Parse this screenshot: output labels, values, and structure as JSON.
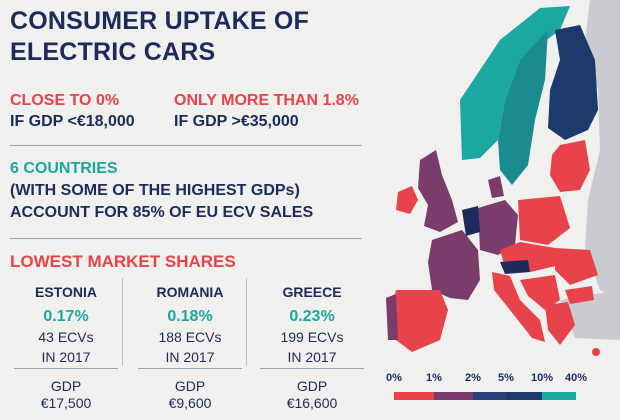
{
  "title": "CONSUMER UPTAKE OF ELECTRIC CARS",
  "low": {
    "headline": "CLOSE TO 0%",
    "sub": "IF GDP <€18,000"
  },
  "high": {
    "headline": "ONLY MORE THAN 1.8%",
    "sub": "IF GDP >€35,000"
  },
  "concentration": {
    "headline": "6 COUNTRIES",
    "line2": "(WITH SOME OF THE HIGHEST GDPs)",
    "line3": "ACCOUNT FOR 85% OF EU ECV SALES"
  },
  "lowest": {
    "heading": "LOWEST MARKET SHARES",
    "countries": [
      {
        "name": "ESTONIA",
        "share": "0.17%",
        "ecvs": "43 ECVs",
        "year": "IN 2017",
        "gdp_label": "GDP",
        "gdp": "€17,500"
      },
      {
        "name": "ROMANIA",
        "share": "0.18%",
        "ecvs": "188 ECVs",
        "year": "IN 2017",
        "gdp_label": "GDP",
        "gdp": "€9,600"
      },
      {
        "name": "GREECE",
        "share": "0.23%",
        "ecvs": "199 ECVs",
        "year": "IN 2017",
        "gdp_label": "GDP",
        "gdp": "€16,600"
      }
    ]
  },
  "legend": {
    "labels": [
      "0%",
      "1%",
      "2%",
      "5%",
      "10%",
      "40%"
    ],
    "colors": [
      "#e8424a",
      "#7a3d6b",
      "#2b3f7d",
      "#1c3a6b",
      "#1a8c8f",
      "#1aa8a0"
    ]
  },
  "palette": {
    "red": "#e8424a",
    "purple": "#7a3d6b",
    "navy": "#1d2a5c",
    "blue": "#1c3a6b",
    "teal_dark": "#1a8c8f",
    "teal": "#1aa8a0",
    "grey": "#c9cbd0"
  }
}
